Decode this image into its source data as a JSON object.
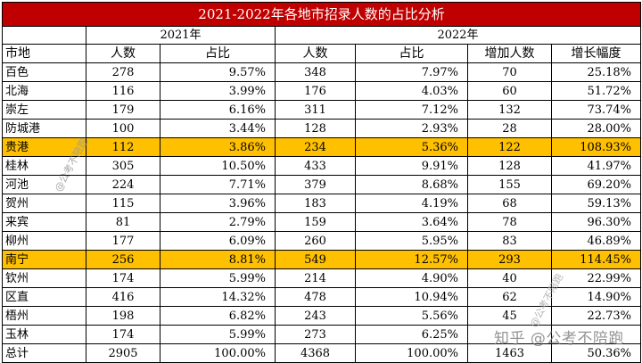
{
  "title": "2021-2022年各地市招录人数的占比分析",
  "year_2021": "2021年",
  "year_2022": "2022年",
  "headers": [
    "市地",
    "人数",
    "占比",
    "人数",
    "占比",
    "增加人数",
    "增长幅度"
  ],
  "highlight_color": "#ffc000",
  "title_color": "#c00000",
  "rows": [
    {
      "city": "百色",
      "n2021": "278",
      "p2021": "9.57%",
      "n2022": "348",
      "p2022": "7.97%",
      "inc": "70",
      "growth": "25.18%",
      "hl": false
    },
    {
      "city": "北海",
      "n2021": "116",
      "p2021": "3.99%",
      "n2022": "176",
      "p2022": "4.03%",
      "inc": "60",
      "growth": "51.72%",
      "hl": false
    },
    {
      "city": "崇左",
      "n2021": "179",
      "p2021": "6.16%",
      "n2022": "311",
      "p2022": "7.12%",
      "inc": "132",
      "growth": "73.74%",
      "hl": false
    },
    {
      "city": "防城港",
      "n2021": "100",
      "p2021": "3.44%",
      "n2022": "128",
      "p2022": "2.93%",
      "inc": "28",
      "growth": "28.00%",
      "hl": false
    },
    {
      "city": "贵港",
      "n2021": "112",
      "p2021": "3.86%",
      "n2022": "234",
      "p2022": "5.36%",
      "inc": "122",
      "growth": "108.93%",
      "hl": true
    },
    {
      "city": "桂林",
      "n2021": "305",
      "p2021": "10.50%",
      "n2022": "433",
      "p2022": "9.91%",
      "inc": "128",
      "growth": "41.97%",
      "hl": false
    },
    {
      "city": "河池",
      "n2021": "224",
      "p2021": "7.71%",
      "n2022": "379",
      "p2022": "8.68%",
      "inc": "155",
      "growth": "69.20%",
      "hl": false
    },
    {
      "city": "贺州",
      "n2021": "115",
      "p2021": "3.96%",
      "n2022": "183",
      "p2022": "4.19%",
      "inc": "68",
      "growth": "59.13%",
      "hl": false
    },
    {
      "city": "来宾",
      "n2021": "81",
      "p2021": "2.79%",
      "n2022": "159",
      "p2022": "3.64%",
      "inc": "78",
      "growth": "96.30%",
      "hl": false
    },
    {
      "city": "柳州",
      "n2021": "177",
      "p2021": "6.09%",
      "n2022": "260",
      "p2022": "5.95%",
      "inc": "83",
      "growth": "46.89%",
      "hl": false
    },
    {
      "city": "南宁",
      "n2021": "256",
      "p2021": "8.81%",
      "n2022": "549",
      "p2022": "12.57%",
      "inc": "293",
      "growth": "114.45%",
      "hl": true
    },
    {
      "city": "钦州",
      "n2021": "174",
      "p2021": "5.99%",
      "n2022": "214",
      "p2022": "4.90%",
      "inc": "40",
      "growth": "22.99%",
      "hl": false
    },
    {
      "city": "区直",
      "n2021": "416",
      "p2021": "14.32%",
      "n2022": "478",
      "p2022": "10.94%",
      "inc": "62",
      "growth": "14.90%",
      "hl": false
    },
    {
      "city": "梧州",
      "n2021": "198",
      "p2021": "6.82%",
      "n2022": "243",
      "p2022": "5.56%",
      "inc": "45",
      "growth": "22.73%",
      "hl": false
    },
    {
      "city": "玉林",
      "n2021": "174",
      "p2021": "5.99%",
      "n2022": "273",
      "p2022": "6.25%",
      "inc": "",
      "growth": "",
      "hl": false
    },
    {
      "city": "总计",
      "n2021": "2905",
      "p2021": "100.00%",
      "n2022": "4368",
      "p2022": "100.00%",
      "inc": "1463",
      "growth": "50.36%",
      "hl": false
    }
  ],
  "watermarks": {
    "left": "@公考不陪跑",
    "right": "@公考不陪跑",
    "bottom": "知乎 @公考不陪跑"
  }
}
